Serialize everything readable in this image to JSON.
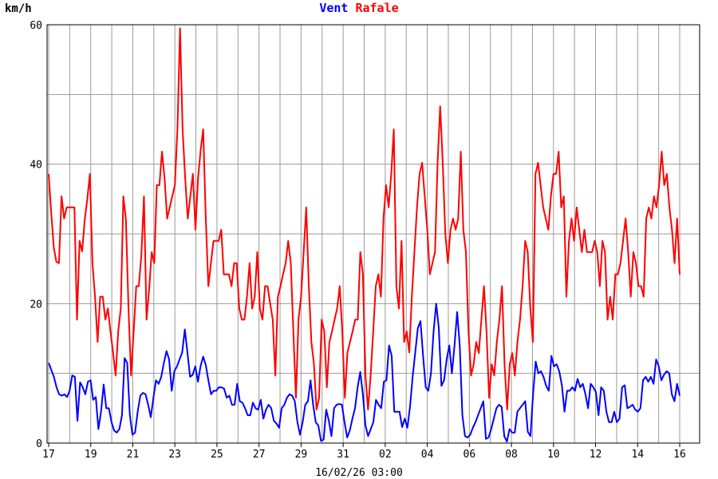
{
  "chart_data": {
    "type": "line",
    "ylabel": "km/h",
    "ylim": [
      0,
      60
    ],
    "yticks": [
      "0",
      "20",
      "40",
      "60"
    ],
    "xtick_labels": [
      "17",
      "19",
      "21",
      "23",
      "25",
      "27",
      "29",
      "31",
      "02",
      "04",
      "06",
      "08",
      "10",
      "12",
      "14",
      "16"
    ],
    "footer": "16/02/26 03:00",
    "grid": true,
    "x_step": "6h",
    "series": [
      {
        "name": "Vent",
        "color": "#0000ff",
        "values": [
          11.5,
          10.5,
          9.5,
          8,
          7,
          6.8,
          7,
          6.6,
          7.5,
          9.7,
          9.5,
          3.2,
          8.7,
          8,
          7,
          8.8,
          9,
          6.2,
          6.6,
          2,
          4.5,
          8.4,
          5,
          5,
          3,
          1.8,
          1.5,
          2,
          4,
          12.2,
          11.5,
          4,
          1.2,
          1.5,
          4.5,
          6.8,
          7.2,
          7,
          5.5,
          3.7,
          6.5,
          9,
          8.5,
          9.5,
          11.5,
          13.2,
          12,
          7.5,
          10.3,
          11,
          12,
          13,
          16.3,
          13,
          9.5,
          9.8,
          11,
          8.8,
          11,
          12.4,
          11.2,
          9,
          7,
          7.5,
          7.5,
          8,
          8,
          7.8,
          6.5,
          6.8,
          5.5,
          5.5,
          8.5,
          6,
          5.8,
          5,
          4,
          4,
          5.8,
          5,
          4.8,
          6.2,
          3.5,
          4.8,
          5.5,
          5,
          3.2,
          2.8,
          2.2,
          5,
          5.5,
          6.5,
          7,
          6.8,
          6,
          3,
          1.2,
          3,
          5.5,
          6,
          9,
          5.5,
          3,
          2.5,
          0.3,
          0.5,
          4.8,
          3.2,
          1,
          5,
          5.5,
          5.6,
          5.5,
          3,
          0.8,
          1.8,
          3.5,
          5,
          8,
          10.2,
          7,
          2.5,
          1,
          2,
          3,
          6.2,
          5.5,
          5,
          8.8,
          9,
          14,
          12.5,
          4.5,
          4.5,
          4.5,
          2.3,
          3.5,
          2.2,
          5.2,
          9.5,
          13,
          16.5,
          17.5,
          12.5,
          8,
          7.5,
          10,
          16,
          20,
          16.5,
          8.2,
          9,
          12,
          14,
          10,
          14,
          18.8,
          14,
          4,
          1,
          0.8,
          1.2,
          2.2,
          3,
          4,
          5,
          6,
          0.6,
          0.8,
          2,
          3.5,
          5,
          5.5,
          5.2,
          1,
          0.2,
          2,
          1.5,
          1.5,
          4.5,
          5,
          5.5,
          6,
          1.6,
          1,
          7,
          11.7,
          10,
          10.3,
          9.5,
          8.2,
          7.5,
          12.5,
          11,
          11.3,
          10.3,
          8.3,
          4.5,
          7.5,
          7.5,
          8,
          7.5,
          9.2,
          8,
          8.5,
          7,
          5,
          8.5,
          8,
          7.3,
          4,
          8,
          7.5,
          4.5,
          3,
          3,
          4.5,
          3,
          3.5,
          8,
          8.3,
          5,
          5.2,
          5.5,
          4.8,
          4.5,
          5,
          9,
          9.5,
          8.8,
          9.5,
          8.5,
          12,
          11,
          9,
          9.8,
          10.3,
          10,
          7,
          6,
          8.5,
          6.8
        ]
      },
      {
        "name": "Rafale",
        "color": "#ff0000",
        "values": [
          38.6,
          33,
          28,
          26,
          25.8,
          35.4,
          32.2,
          33.8,
          33.8,
          33.8,
          33.8,
          17.7,
          29,
          27.5,
          32,
          35,
          38.6,
          25.8,
          21,
          14.5,
          21,
          21,
          17.7,
          19.3,
          16,
          13,
          9.7,
          16,
          19.3,
          35.4,
          32,
          19.3,
          9.7,
          16,
          22.5,
          22.5,
          27,
          35.4,
          17.7,
          22,
          27.4,
          25.8,
          37,
          37,
          41.8,
          38,
          32.2,
          33.8,
          35.4,
          37,
          45,
          59.5,
          45,
          38,
          32.2,
          35.4,
          38.6,
          30.6,
          38,
          42,
          45,
          32.2,
          22.5,
          25.8,
          29,
          29,
          29,
          30.6,
          24.2,
          24.2,
          24.2,
          22.5,
          25.8,
          25.8,
          19.3,
          17.7,
          17.7,
          21,
          25.8,
          19.3,
          21,
          27.4,
          19.3,
          17.7,
          22.5,
          22.5,
          20,
          17.7,
          9.7,
          21,
          22.5,
          24.2,
          25.8,
          29,
          25.8,
          16,
          6.5,
          17.7,
          21,
          27.4,
          33.8,
          22.5,
          14.5,
          11.3,
          4.8,
          6.5,
          17.7,
          16,
          8,
          14.5,
          16,
          17.7,
          19.3,
          22.5,
          16,
          6.5,
          13,
          14.5,
          16,
          17.7,
          17.7,
          27.4,
          24.2,
          9.7,
          4.8,
          9.7,
          16,
          22.5,
          24.2,
          21,
          32.2,
          37,
          33.8,
          38.6,
          45,
          22.5,
          19.3,
          29,
          14.5,
          16,
          13,
          21,
          27.4,
          33.8,
          38.6,
          40.2,
          35.4,
          30.6,
          24.2,
          25.8,
          27.4,
          40.2,
          48.3,
          40.2,
          30,
          25.8,
          30.6,
          32.2,
          30.6,
          32.2,
          41.8,
          30.6,
          27.4,
          16,
          9.7,
          11.3,
          14.5,
          12.9,
          17.7,
          22.5,
          16,
          6.5,
          11.3,
          9.7,
          14.5,
          17.7,
          22.5,
          11.3,
          4.8,
          11.3,
          12.9,
          9.7,
          14.5,
          17.7,
          22.5,
          29,
          27.4,
          19.3,
          14.5,
          38.6,
          40.2,
          37,
          33.8,
          32.2,
          30.6,
          35.4,
          38.6,
          38.6,
          41.8,
          33.8,
          35.4,
          21,
          29,
          32.2,
          29,
          33.8,
          30.6,
          27.4,
          30.6,
          27.4,
          27.4,
          27.4,
          29,
          27.4,
          22.5,
          29,
          27.4,
          17.7,
          21,
          17.7,
          24.2,
          24.2,
          25.8,
          29,
          32.2,
          27.4,
          21,
          27.4,
          25.8,
          22.5,
          22.5,
          21,
          32.2,
          33.8,
          32.2,
          35.4,
          33.8,
          37,
          41.8,
          37,
          38.6,
          33.8,
          30.6,
          25.8,
          32.2,
          24.2
        ]
      }
    ]
  }
}
